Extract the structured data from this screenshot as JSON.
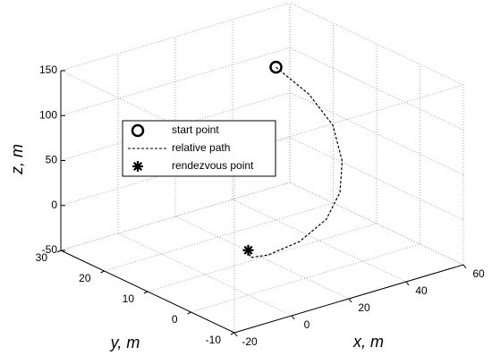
{
  "chart_data": {
    "type": "line3d",
    "xlabel": "x, m",
    "ylabel": "y, m",
    "zlabel": "z, m",
    "xlim": [
      -20,
      60
    ],
    "xticks": [
      -20,
      0,
      20,
      40,
      60
    ],
    "ylim": [
      -10,
      30
    ],
    "yticks": [
      -10,
      0,
      10,
      20,
      30
    ],
    "zlim": [
      -50,
      150
    ],
    "zticks": [
      -50,
      0,
      50,
      100,
      150
    ],
    "grid": true,
    "series": [
      {
        "name": "start point",
        "marker": "o",
        "color": "#000000",
        "x": [
          40
        ],
        "y": [
          20
        ],
        "z": [
          120
        ]
      },
      {
        "name": "relative path",
        "line": "dashed",
        "color": "#000000",
        "x": [
          40,
          48.4,
          52.3,
          51,
          45.7,
          36.4,
          22.5,
          8.5,
          1.3,
          0
        ],
        "y": [
          20,
          18,
          15,
          12,
          9,
          6,
          3,
          1,
          0.3,
          0
        ],
        "z": [
          120,
          86.9,
          55.3,
          23.5,
          0.6,
          -13.6,
          -18.5,
          -15.6,
          -10.1,
          0
        ]
      },
      {
        "name": "rendezvous point",
        "marker": "*",
        "color": "#000000",
        "x": [
          0
        ],
        "y": [
          0
        ],
        "z": [
          0
        ]
      }
    ]
  }
}
